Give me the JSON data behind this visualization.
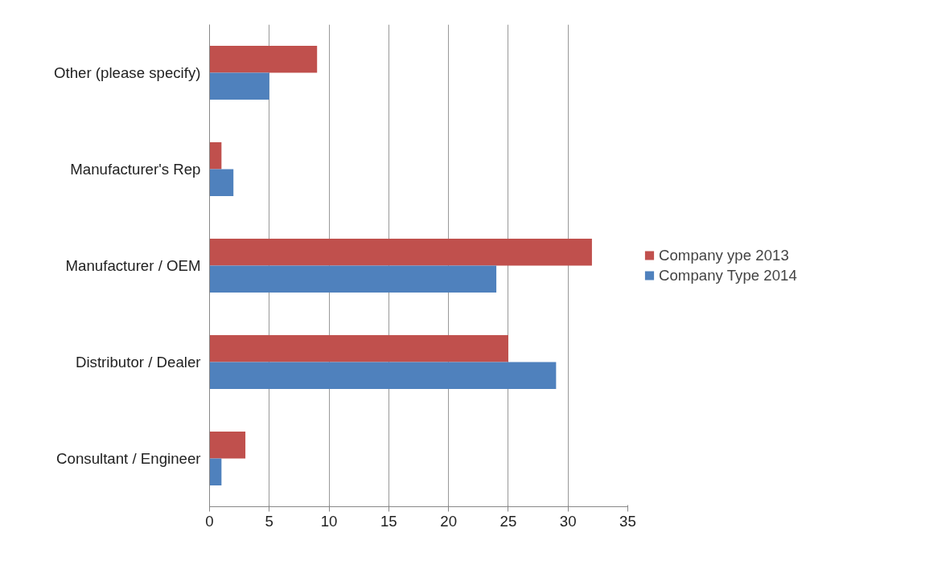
{
  "chart_data": {
    "type": "bar",
    "orientation": "horizontal",
    "categories": [
      "Other (please specify)",
      "Manufacturer's Rep",
      "Manufacturer / OEM",
      "Distributor / Dealer",
      "Consultant / Engineer"
    ],
    "series": [
      {
        "name": "Company ype 2013",
        "color": "#c0504d",
        "values": [
          9,
          1,
          32,
          25,
          3
        ]
      },
      {
        "name": "Company Type 2014",
        "color": "#4f81bd",
        "values": [
          5,
          2,
          24,
          29,
          1
        ]
      }
    ],
    "xlim": [
      0,
      35
    ],
    "xticks": [
      0,
      5,
      10,
      15,
      20,
      25,
      30,
      35
    ],
    "grid": "x",
    "legend": "right"
  }
}
